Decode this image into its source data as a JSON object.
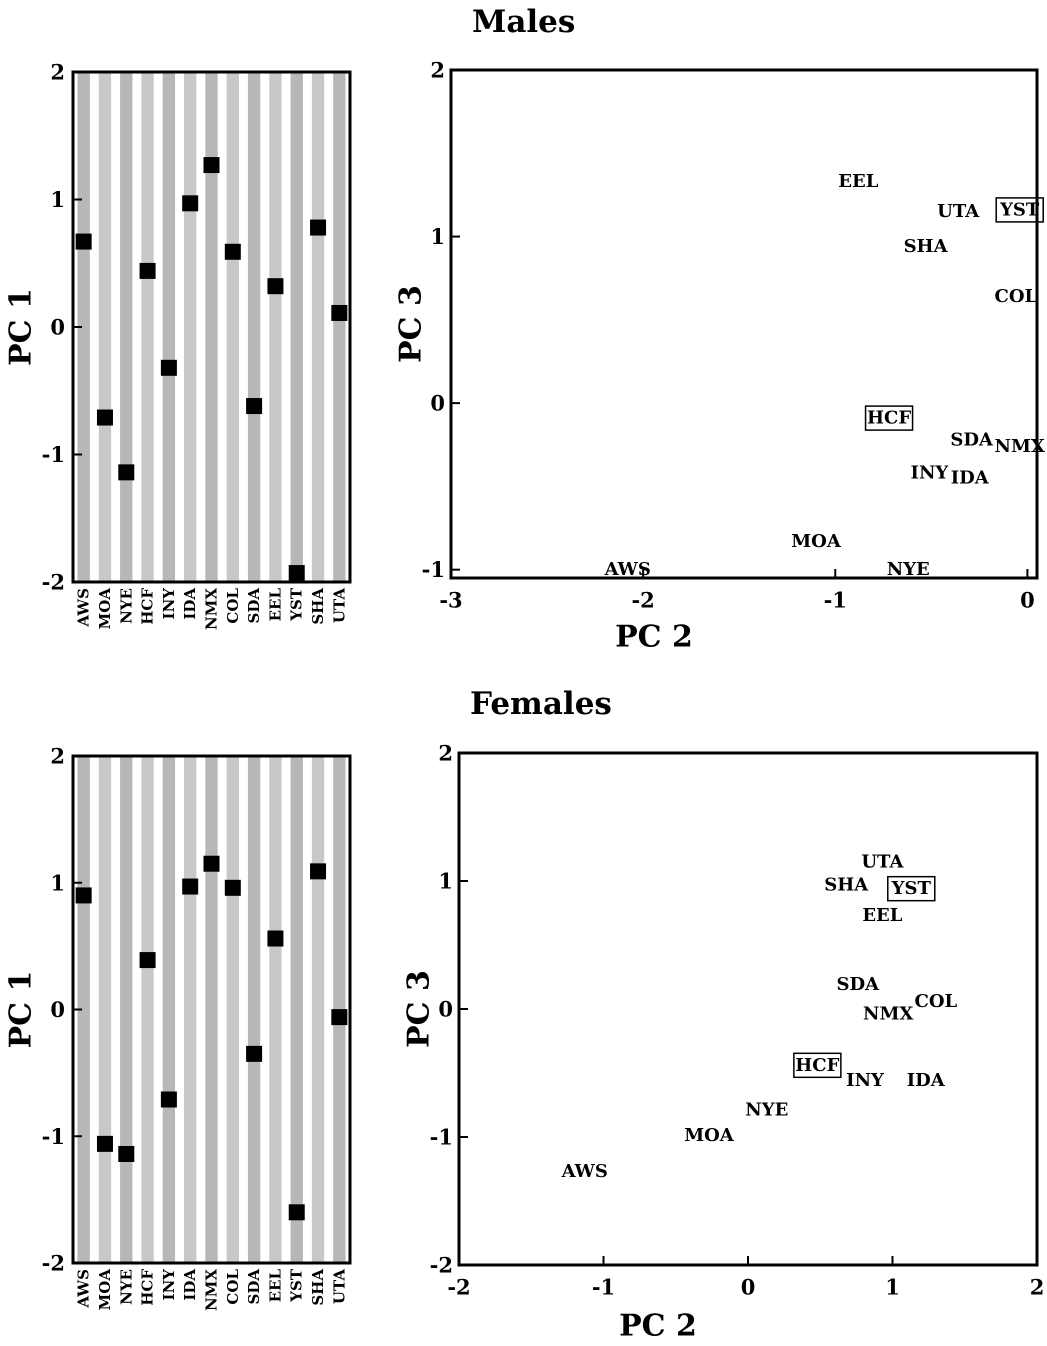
{
  "sections": [
    {
      "title": "Males"
    },
    {
      "title": "Females"
    }
  ],
  "chart_data": [
    {
      "id": "males-pc1",
      "type": "scatter",
      "section": "Males",
      "categories": [
        "AWS",
        "MOA",
        "NYE",
        "HCF",
        "INY",
        "IDA",
        "NMX",
        "COL",
        "SDA",
        "EEL",
        "YST",
        "SHA",
        "UTA"
      ],
      "values": [
        0.67,
        -0.71,
        -1.14,
        0.44,
        -0.32,
        0.97,
        1.27,
        0.59,
        -0.62,
        0.32,
        -1.93,
        0.78,
        0.11
      ],
      "ylabel": "PC 1",
      "ylim": [
        -2,
        2
      ],
      "yticks": [
        "-2",
        "-1",
        "0",
        "1",
        "2"
      ],
      "band_colors": [
        "#b7b7b7",
        "#c8c8c8"
      ]
    },
    {
      "id": "males-pc23",
      "type": "scatter",
      "section": "Males",
      "xlabel": "PC 2",
      "ylabel": "PC 3",
      "xlim": [
        -3,
        0.05
      ],
      "ylim": [
        -1.05,
        2
      ],
      "xticks": [
        "-3",
        "-2",
        "-1",
        "0"
      ],
      "yticks": [
        "-1",
        "0",
        "1",
        "2"
      ],
      "points": [
        {
          "label": "EEL",
          "x": -0.88,
          "y": 1.33
        },
        {
          "label": "UTA",
          "x": -0.36,
          "y": 1.15
        },
        {
          "label": "YST",
          "x": -0.04,
          "y": 1.16,
          "boxed": true
        },
        {
          "label": "SHA",
          "x": -0.53,
          "y": 0.94
        },
        {
          "label": "COL",
          "x": -0.06,
          "y": 0.64
        },
        {
          "label": "HCF",
          "x": -0.72,
          "y": -0.09,
          "boxed": true
        },
        {
          "label": "SDA",
          "x": -0.29,
          "y": -0.22
        },
        {
          "label": "NMX",
          "x": -0.04,
          "y": -0.26
        },
        {
          "label": "INY",
          "x": -0.51,
          "y": -0.42
        },
        {
          "label": "IDA",
          "x": -0.3,
          "y": -0.45
        },
        {
          "label": "MOA",
          "x": -1.1,
          "y": -0.83
        },
        {
          "label": "NYE",
          "x": -0.62,
          "y": -1.0
        },
        {
          "label": "AWS",
          "x": -2.08,
          "y": -1.0
        }
      ]
    },
    {
      "id": "females-pc1",
      "type": "scatter",
      "section": "Females",
      "categories": [
        "AWS",
        "MOA",
        "NYE",
        "HCF",
        "INY",
        "IDA",
        "NMX",
        "COL",
        "SDA",
        "EEL",
        "YST",
        "SHA",
        "UTA"
      ],
      "values": [
        0.9,
        -1.06,
        -1.14,
        0.39,
        -0.71,
        0.97,
        1.15,
        0.96,
        -0.35,
        0.56,
        -1.6,
        1.09,
        -0.06
      ],
      "ylabel": "PC 1",
      "ylim": [
        -2,
        2
      ],
      "yticks": [
        "-2",
        "-1",
        "0",
        "1",
        "2"
      ],
      "band_colors": [
        "#b7b7b7",
        "#c8c8c8"
      ]
    },
    {
      "id": "females-pc23",
      "type": "scatter",
      "section": "Females",
      "xlabel": "PC 2",
      "ylabel": "PC 3",
      "xlim": [
        -2,
        2
      ],
      "ylim": [
        -2,
        2
      ],
      "xticks": [
        "-2",
        "-1",
        "0",
        "1",
        "2"
      ],
      "yticks": [
        "-2",
        "-1",
        "0",
        "1",
        "2"
      ],
      "points": [
        {
          "label": "UTA",
          "x": 0.93,
          "y": 1.15
        },
        {
          "label": "SHA",
          "x": 0.68,
          "y": 0.97
        },
        {
          "label": "YST",
          "x": 1.13,
          "y": 0.94,
          "boxed": true
        },
        {
          "label": "EEL",
          "x": 0.93,
          "y": 0.73
        },
        {
          "label": "SDA",
          "x": 0.76,
          "y": 0.19
        },
        {
          "label": "COL",
          "x": 1.3,
          "y": 0.06
        },
        {
          "label": "NMX",
          "x": 0.97,
          "y": -0.04
        },
        {
          "label": "HCF",
          "x": 0.48,
          "y": -0.44,
          "boxed": true
        },
        {
          "label": "INY",
          "x": 0.81,
          "y": -0.56
        },
        {
          "label": "IDA",
          "x": 1.23,
          "y": -0.56
        },
        {
          "label": "NYE",
          "x": 0.13,
          "y": -0.79
        },
        {
          "label": "MOA",
          "x": -0.27,
          "y": -0.99
        },
        {
          "label": "AWS",
          "x": -1.13,
          "y": -1.27
        }
      ]
    }
  ]
}
